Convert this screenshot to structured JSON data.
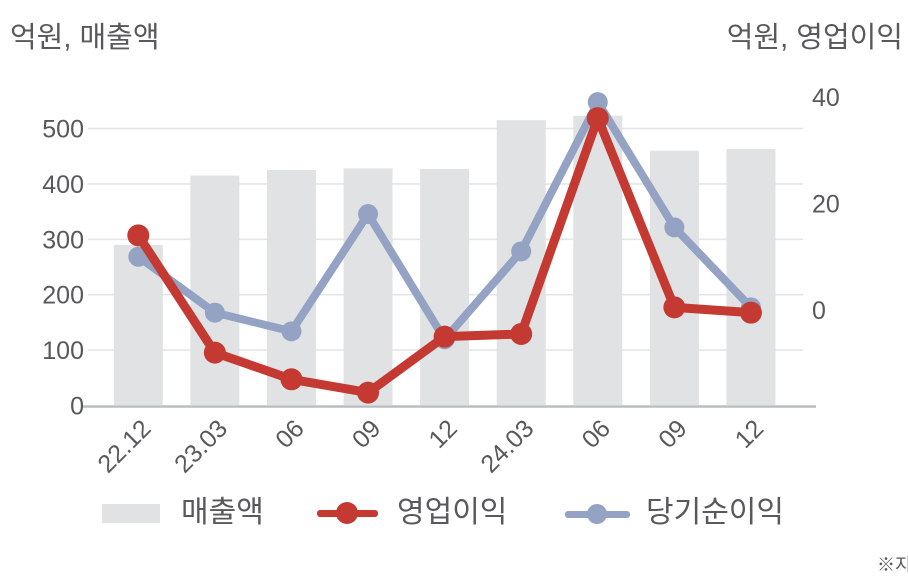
{
  "titles": {
    "left": "억원, 매출액",
    "right": "억원, 영업이익"
  },
  "legend": {
    "revenue_label": "매출액",
    "operating_label": "영업이익",
    "net_label": "당기순이익"
  },
  "footnote": "※지",
  "colors": {
    "bar": "#e1e2e3",
    "operating_red": "#c43a32",
    "net_blue": "#94a2c3",
    "gridline": "#e4e6e6",
    "axis_line": "#babdbf",
    "tick_text": "#58595b"
  },
  "chart_data": {
    "type": "combo: bar + 2 lines (dual axis)",
    "categories": [
      "22.12",
      "23.03",
      "06",
      "09",
      "12",
      "24.03",
      "06",
      "09",
      "12"
    ],
    "series": [
      {
        "name": "매출액",
        "type": "bar",
        "axis": "left",
        "values": [
          290,
          415,
          425,
          428,
          427,
          515,
          523,
          460,
          463
        ]
      },
      {
        "name": "영업이익",
        "type": "line",
        "axis": "right",
        "values": [
          14,
          -8,
          -13,
          -15.5,
          -5,
          -4.5,
          36,
          0.5,
          -0.5
        ]
      },
      {
        "name": "당기순이익",
        "type": "line",
        "axis": "right",
        "values": [
          10,
          -0.5,
          -4,
          18,
          -5.5,
          11,
          39,
          15.5,
          0.5
        ]
      }
    ],
    "left_axis": {
      "title": "억원, 매출액",
      "ticks": [
        0,
        100,
        200,
        300,
        400,
        500
      ],
      "range": [
        0,
        550
      ]
    },
    "right_axis": {
      "title": "억원, 영업이익",
      "ticks": [
        0,
        20,
        40
      ],
      "range": [
        -18,
        40
      ]
    },
    "grid": true,
    "legend_position": "bottom",
    "x_label_rotation": -45
  }
}
